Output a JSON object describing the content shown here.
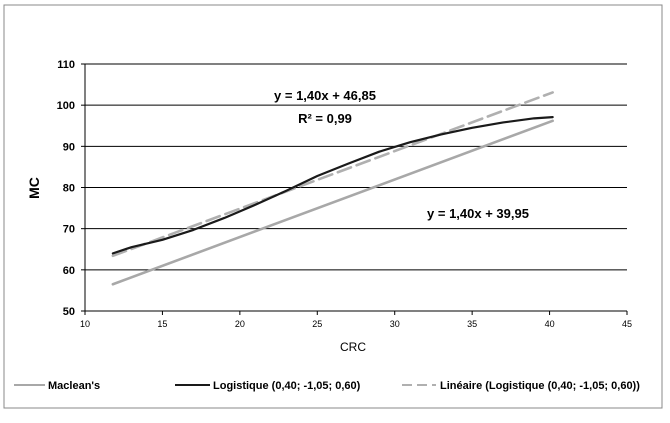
{
  "chart_data": {
    "type": "line",
    "xlabel": "CRC",
    "ylabel": "MC",
    "xlim": [
      10,
      45
    ],
    "ylim": [
      50,
      110
    ],
    "xticks": [
      "10",
      "15",
      "20",
      "25",
      "30",
      "35",
      "40",
      "45"
    ],
    "yticks": [
      "50",
      "60",
      "70",
      "80",
      "90",
      "100",
      "110"
    ],
    "grid": "horizontal",
    "legend_position": "bottom",
    "series": [
      {
        "name": "Maclean's",
        "color": "#a8a8a8",
        "style": "solid",
        "x": [
          11.8,
          40.2
        ],
        "y": [
          56.5,
          96.2
        ]
      },
      {
        "name": "Logistique (0,40; -1,05; 0,60)",
        "color": "#1a1a1a",
        "style": "solid",
        "x": [
          11.8,
          13,
          15,
          17,
          19,
          21,
          23,
          25,
          27,
          29,
          31,
          33,
          35,
          37,
          39,
          40.2
        ],
        "y": [
          64,
          65.5,
          67.3,
          69.7,
          72.6,
          75.8,
          79.2,
          82.8,
          85.8,
          88.7,
          91,
          92.9,
          94.5,
          95.8,
          96.8,
          97.1
        ]
      },
      {
        "name": "Linéaire (Logistique (0,40; -1,05; 0,60))",
        "color": "#b0b0b0",
        "style": "dashed",
        "x": [
          11.8,
          40.2
        ],
        "y": [
          63.4,
          103.1
        ]
      }
    ],
    "annotations": [
      {
        "id": "eq_top",
        "text": "y = 1,40x + 46,85"
      },
      {
        "id": "r2",
        "text": "R² = 0,99"
      },
      {
        "id": "eq_bottom",
        "text": "y = 1,40x + 39,95"
      }
    ]
  }
}
